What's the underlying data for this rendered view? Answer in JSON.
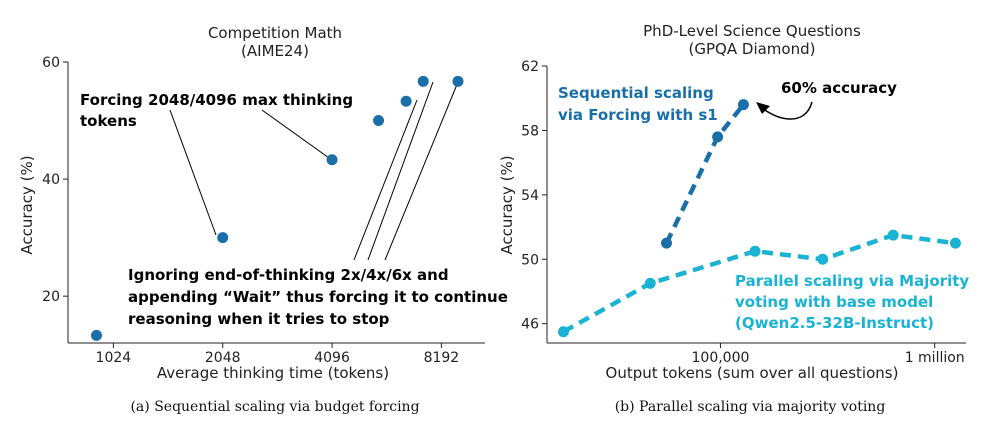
{
  "chart_data": [
    {
      "type": "scatter",
      "title": "Competition Math",
      "subtitle": "(AIME24)",
      "xlabel": "Average thinking time (tokens)",
      "ylabel": "Accuracy (%)",
      "x_scale": "log2",
      "xlim": [
        768,
        10800
      ],
      "ylim": [
        12,
        60
      ],
      "x_ticks": [
        1024,
        2048,
        4096,
        8192
      ],
      "x_tick_labels": [
        "1024",
        "2048",
        "4096",
        "8192"
      ],
      "y_ticks": [
        20,
        40,
        60
      ],
      "y_tick_labels": [
        "20",
        "40",
        "60"
      ],
      "series": [
        {
          "name": "budget forcing",
          "color": "#1a6fa8",
          "points": [
            {
              "x": 920,
              "y": 13.3
            },
            {
              "x": 2048,
              "y": 30.0
            },
            {
              "x": 4096,
              "y": 43.3
            },
            {
              "x": 5500,
              "y": 50.0
            },
            {
              "x": 6550,
              "y": 53.3
            },
            {
              "x": 7300,
              "y": 56.7
            },
            {
              "x": 9100,
              "y": 56.7
            }
          ]
        }
      ],
      "annotations": {
        "forcing_line1": "Forcing 2048/4096 max thinking",
        "forcing_line2": "tokens",
        "ignoring_line1": "Ignoring end-of-thinking 2x/4x/6x and",
        "ignoring_line2": "appending “Wait” thus forcing it to continue",
        "ignoring_line3": "reasoning when it tries to stop"
      },
      "caption": "(a) Sequential scaling via budget forcing"
    },
    {
      "type": "line",
      "title": "PhD-Level Science Questions",
      "subtitle": "(GPQA Diamond)",
      "xlabel": "Output tokens (sum over all questions)",
      "ylabel": "Accuracy (%)",
      "x_scale": "log10",
      "xlim": [
        15500,
        1400000
      ],
      "ylim": [
        44.8,
        62
      ],
      "x_ticks": [
        100000,
        1000000
      ],
      "x_tick_labels": [
        "100,000",
        "1 million"
      ],
      "y_ticks": [
        46,
        50,
        54,
        58,
        62
      ],
      "y_tick_labels": [
        "46",
        "50",
        "54",
        "58",
        "62"
      ],
      "series": [
        {
          "name": "Sequential scaling via Forcing with s1",
          "color": "#1a6fa8",
          "points": [
            {
              "x": 56000,
              "y": 51.0
            },
            {
              "x": 97000,
              "y": 57.6
            },
            {
              "x": 128000,
              "y": 59.6
            }
          ]
        },
        {
          "name": "Parallel scaling via Majority voting with base model (Qwen2.5-32B-Instruct)",
          "color": "#1ab3d4",
          "points": [
            {
              "x": 18500,
              "y": 45.5
            },
            {
              "x": 47000,
              "y": 48.5
            },
            {
              "x": 145000,
              "y": 50.5
            },
            {
              "x": 300000,
              "y": 50.0
            },
            {
              "x": 640000,
              "y": 51.5
            },
            {
              "x": 1250000,
              "y": 51.0
            }
          ]
        }
      ],
      "annotations": {
        "seq_line1": "Sequential scaling",
        "seq_line2": "via Forcing with s1",
        "accuracy_callout": "60% accuracy",
        "par_line1": "Parallel scaling via Majority",
        "par_line2": "voting with base model",
        "par_line3": "(Qwen2.5-32B-Instruct)"
      },
      "caption": "(b) Parallel scaling via majority voting"
    }
  ]
}
